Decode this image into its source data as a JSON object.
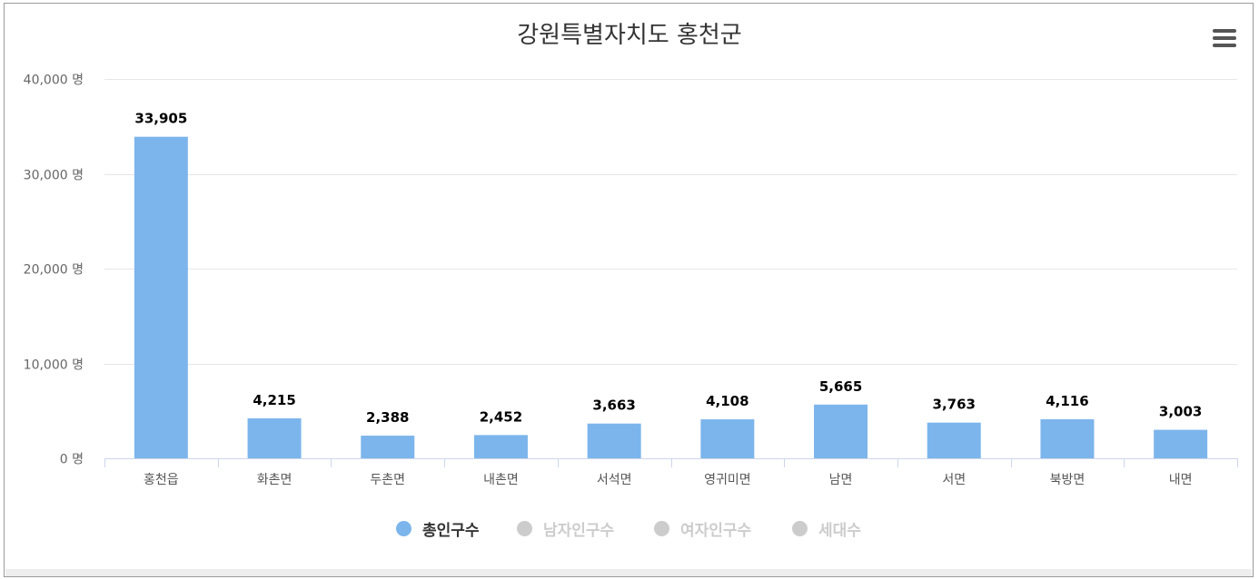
{
  "chart_data": {
    "type": "bar",
    "title": "강원특별자치도 홍천군",
    "categories": [
      "홍천읍",
      "화촌면",
      "두촌면",
      "내촌면",
      "서석면",
      "영귀미면",
      "남면",
      "서면",
      "북방면",
      "내면"
    ],
    "series": [
      {
        "name": "총인구수",
        "values": [
          33905,
          4215,
          2388,
          2452,
          3663,
          4108,
          5665,
          3763,
          4116,
          3003
        ],
        "data_labels": [
          "33,905",
          "4,215",
          "2,388",
          "2,452",
          "3,663",
          "4,108",
          "5,665",
          "3,763",
          "4,116",
          "3,003"
        ]
      }
    ],
    "yaxis": {
      "ticks": [
        0,
        10000,
        20000,
        30000,
        40000
      ],
      "tick_labels": [
        "0 명",
        "10,000 명",
        "20,000 명",
        "30,000 명",
        "40,000 명"
      ],
      "ylim": [
        0,
        40000
      ]
    },
    "grid": true,
    "legend_position": "bottom-center"
  },
  "legend": [
    {
      "label": "총인구수",
      "color": "#7cb5ec",
      "active": true
    },
    {
      "label": "남자인구수",
      "color": "#cccccc",
      "active": false
    },
    {
      "label": "여자인구수",
      "color": "#cccccc",
      "active": false
    },
    {
      "label": "세대수",
      "color": "#cccccc",
      "active": false
    }
  ],
  "colors": {
    "bar": "#7cb5ec",
    "grid": "#e6e6e6",
    "axis": "#ccd6eb"
  },
  "menu": {
    "icon": "hamburger-menu-icon"
  }
}
